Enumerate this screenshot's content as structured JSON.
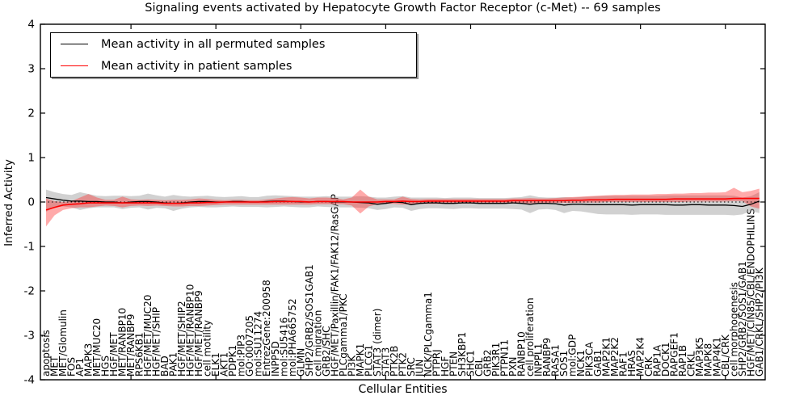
{
  "chart_data": {
    "type": "line",
    "title": "Signaling events activated by Hepatocyte Growth Factor Receptor (c-Met) -- 69 samples",
    "xlabel": "Cellular Entities",
    "ylabel": "Inferred Activity",
    "ylim": [
      -4,
      4
    ],
    "yticks": [
      "-4",
      "-3",
      "-2",
      "-1",
      "0",
      "1",
      "2",
      "3",
      "4"
    ],
    "legend_position": "upper left",
    "grid": false,
    "legend": [
      {
        "label": "Mean activity in all permuted samples",
        "color": "#000000"
      },
      {
        "label": "Mean activity in patient samples",
        "color": "#ff0000"
      }
    ],
    "colors": {
      "permuted_line": "#000000",
      "patient_line": "#ff0000",
      "permuted_band": "#999999",
      "patient_band": "#ff2a2a",
      "zero_line": "#000000"
    },
    "categories": [
      "apoptosis",
      "MET",
      "MET/Glomulin",
      "FOS",
      "AP1",
      "MAPK3",
      "MET/MUC20",
      "HGS",
      "HGF/MET",
      "MET/RANBP10",
      "MET/RANBP9",
      "RPS6KB1",
      "HGF/MET/MUC20",
      "HGF/MET/SHIP",
      "BAD",
      "PAK1",
      "HGF/MET/SHIP2",
      "HGF/MET/RANBP10",
      "HGF/MET/RANBP9",
      "cell motility",
      "ELK1",
      "AKT1",
      "PDPK1",
      "mol:PIP3",
      "GO:0007205",
      "mol:SU11274",
      "EntrezGene:200958",
      "INPP5D",
      "mol:SU5416",
      "mol:PHA665752",
      "GLMN",
      "SHP2/GRB2/SOS1GAB1",
      "cell migration",
      "GRB2/SHC",
      "HGF/MET/Paxillin/FAK1/FAK12/RasGAP",
      "PLCgamma1/PKC",
      "PI3K",
      "MAPK1",
      "PLCG1",
      "STAT3 (dimer)",
      "STAT3",
      "PTK2B",
      "PTK2",
      "SRC",
      "JUN",
      "NCK/PLCgamma1",
      "PTPRJ",
      "HGF",
      "PTEN",
      "SH3KBP1",
      "SHC1",
      "CBL",
      "GRB2",
      "PIK3R1",
      "PTPN11",
      "PXN",
      "RANBP10",
      "cell proliferation",
      "INPPL1",
      "RANBP9",
      "RASA1",
      "SOS1",
      "mol:GDP",
      "NCK1",
      "PIK3CA",
      "GAB1",
      "MAP2K1",
      "MAP2K2",
      "RAF1",
      "HRAS",
      "MAP2K4",
      "CRK",
      "RAP1A",
      "DOCK1",
      "RAPGEF1",
      "RAP1B",
      "CRKL",
      "MAP3K5",
      "MAPK8",
      "MAP4K1",
      "CBL/CRK",
      "cell morphogenesis",
      "SHP2/GRB2/SOS1/GAB1",
      "HGF/MET/CIN85/CBL/ENDOPHILINS",
      "GAB1/CRKL/SHP2/PI3K"
    ],
    "series": [
      {
        "name": "Mean activity in all permuted samples",
        "values": [
          0.1,
          0.07,
          0.04,
          0.02,
          0.02,
          0.01,
          0.01,
          0.0,
          0.0,
          -0.02,
          0.0,
          0.01,
          0.01,
          0.0,
          -0.02,
          -0.03,
          -0.02,
          0.0,
          0.01,
          0.01,
          0.0,
          0.0,
          0.01,
          0.01,
          0.0,
          0.0,
          0.01,
          0.02,
          0.02,
          0.01,
          0.0,
          0.0,
          0.01,
          0.01,
          0.0,
          0.0,
          0.0,
          -0.01,
          -0.02,
          -0.05,
          -0.03,
          0.0,
          -0.01,
          -0.06,
          -0.03,
          -0.02,
          -0.02,
          -0.03,
          -0.03,
          -0.02,
          -0.02,
          -0.03,
          -0.03,
          -0.03,
          -0.03,
          -0.02,
          -0.03,
          -0.05,
          -0.03,
          -0.03,
          -0.04,
          -0.07,
          -0.05,
          -0.05,
          -0.06,
          -0.06,
          -0.06,
          -0.06,
          -0.06,
          -0.07,
          -0.06,
          -0.06,
          -0.06,
          -0.06,
          -0.07,
          -0.07,
          -0.06,
          -0.06,
          -0.07,
          -0.07,
          -0.07,
          -0.08,
          -0.1,
          -0.05,
          0.02
        ]
      },
      {
        "name": "Mean activity in patient samples",
        "values": [
          -0.18,
          -0.12,
          -0.07,
          -0.05,
          -0.04,
          -0.02,
          -0.02,
          -0.02,
          -0.02,
          -0.02,
          -0.02,
          -0.02,
          -0.02,
          -0.02,
          -0.03,
          -0.03,
          -0.03,
          -0.02,
          -0.02,
          -0.01,
          -0.01,
          0.0,
          0.0,
          0.0,
          0.0,
          0.0,
          0.0,
          0.01,
          0.01,
          0.01,
          0.01,
          0.0,
          0.01,
          0.01,
          0.01,
          0.01,
          0.0,
          0.0,
          0.0,
          0.0,
          0.01,
          0.01,
          0.02,
          0.01,
          0.01,
          0.02,
          0.02,
          0.02,
          0.02,
          0.02,
          0.02,
          0.02,
          0.02,
          0.02,
          0.02,
          0.03,
          0.03,
          0.03,
          0.03,
          0.03,
          0.03,
          0.03,
          0.04,
          0.04,
          0.05,
          0.05,
          0.05,
          0.06,
          0.06,
          0.06,
          0.06,
          0.06,
          0.06,
          0.06,
          0.07,
          0.07,
          0.07,
          0.07,
          0.07,
          0.07,
          0.07,
          0.08,
          0.08,
          0.08,
          0.08
        ]
      }
    ],
    "bands": [
      {
        "name": "permuted-std-band",
        "hi": [
          0.28,
          0.22,
          0.18,
          0.16,
          0.22,
          0.18,
          0.14,
          0.13,
          0.14,
          0.14,
          0.13,
          0.14,
          0.19,
          0.15,
          0.12,
          0.16,
          0.13,
          0.12,
          0.13,
          0.14,
          0.12,
          0.11,
          0.12,
          0.13,
          0.11,
          0.11,
          0.14,
          0.15,
          0.14,
          0.13,
          0.12,
          0.12,
          0.12,
          0.13,
          0.12,
          0.12,
          0.12,
          0.13,
          0.12,
          0.1,
          0.1,
          0.12,
          0.13,
          0.1,
          0.1,
          0.1,
          0.1,
          0.09,
          0.1,
          0.1,
          0.1,
          0.09,
          0.09,
          0.09,
          0.09,
          0.1,
          0.11,
          0.15,
          0.11,
          0.1,
          0.1,
          0.11,
          0.1,
          0.11,
          0.12,
          0.13,
          0.14,
          0.14,
          0.14,
          0.14,
          0.14,
          0.14,
          0.14,
          0.15,
          0.15,
          0.15,
          0.15,
          0.15,
          0.15,
          0.15,
          0.15,
          0.14,
          0.1,
          0.13,
          0.22
        ],
        "lo": [
          -0.22,
          -0.12,
          -0.1,
          -0.12,
          -0.18,
          -0.14,
          -0.12,
          -0.12,
          -0.12,
          -0.16,
          -0.13,
          -0.12,
          -0.17,
          -0.13,
          -0.14,
          -0.2,
          -0.15,
          -0.12,
          -0.11,
          -0.12,
          -0.12,
          -0.11,
          -0.1,
          -0.11,
          -0.11,
          -0.11,
          -0.12,
          -0.11,
          -0.1,
          -0.11,
          -0.12,
          -0.12,
          -0.1,
          -0.11,
          -0.12,
          -0.12,
          -0.12,
          -0.13,
          -0.14,
          -0.18,
          -0.16,
          -0.12,
          -0.13,
          -0.2,
          -0.16,
          -0.14,
          -0.14,
          -0.15,
          -0.16,
          -0.14,
          -0.14,
          -0.15,
          -0.15,
          -0.15,
          -0.15,
          -0.16,
          -0.17,
          -0.25,
          -0.17,
          -0.16,
          -0.18,
          -0.25,
          -0.2,
          -0.21,
          -0.24,
          -0.27,
          -0.28,
          -0.28,
          -0.28,
          -0.29,
          -0.28,
          -0.28,
          -0.28,
          -0.29,
          -0.29,
          -0.29,
          -0.29,
          -0.29,
          -0.29,
          -0.29,
          -0.29,
          -0.3,
          -0.28,
          -0.2,
          -0.25
        ]
      },
      {
        "name": "patient-std-band",
        "hi": [
          0.08,
          0.02,
          0.0,
          0.02,
          0.1,
          0.18,
          0.1,
          0.05,
          0.05,
          0.12,
          0.06,
          0.05,
          0.06,
          0.05,
          0.04,
          0.05,
          0.05,
          0.06,
          0.08,
          0.07,
          0.05,
          0.04,
          0.05,
          0.05,
          0.04,
          0.04,
          0.06,
          0.08,
          0.1,
          0.11,
          0.1,
          0.08,
          0.1,
          0.1,
          0.09,
          0.06,
          0.1,
          0.28,
          0.12,
          0.06,
          0.06,
          0.06,
          0.12,
          0.07,
          0.06,
          0.07,
          0.07,
          0.07,
          0.07,
          0.07,
          0.07,
          0.07,
          0.07,
          0.07,
          0.07,
          0.08,
          0.08,
          0.09,
          0.08,
          0.08,
          0.09,
          0.1,
          0.11,
          0.12,
          0.13,
          0.14,
          0.15,
          0.16,
          0.16,
          0.17,
          0.17,
          0.17,
          0.18,
          0.18,
          0.19,
          0.19,
          0.2,
          0.2,
          0.21,
          0.21,
          0.22,
          0.32,
          0.22,
          0.25,
          0.3
        ],
        "lo": [
          -0.55,
          -0.3,
          -0.18,
          -0.14,
          -0.12,
          -0.12,
          -0.1,
          -0.08,
          -0.09,
          -0.12,
          -0.09,
          -0.08,
          -0.09,
          -0.08,
          -0.09,
          -0.1,
          -0.1,
          -0.09,
          -0.09,
          -0.08,
          -0.07,
          -0.06,
          -0.06,
          -0.06,
          -0.06,
          -0.06,
          -0.06,
          -0.06,
          -0.06,
          -0.06,
          -0.06,
          -0.06,
          -0.05,
          -0.05,
          -0.05,
          -0.05,
          -0.08,
          -0.26,
          -0.1,
          -0.05,
          -0.04,
          -0.04,
          -0.06,
          -0.05,
          -0.04,
          -0.04,
          -0.04,
          -0.04,
          -0.04,
          -0.03,
          -0.03,
          -0.03,
          -0.03,
          -0.03,
          -0.03,
          -0.03,
          -0.03,
          -0.03,
          -0.02,
          -0.02,
          -0.02,
          -0.02,
          -0.02,
          -0.01,
          -0.01,
          -0.01,
          0.0,
          0.0,
          0.0,
          0.0,
          0.0,
          0.0,
          0.0,
          0.0,
          0.0,
          0.0,
          0.01,
          0.01,
          0.01,
          0.01,
          0.01,
          0.02,
          0.02,
          -0.1,
          -0.15
        ]
      }
    ]
  }
}
